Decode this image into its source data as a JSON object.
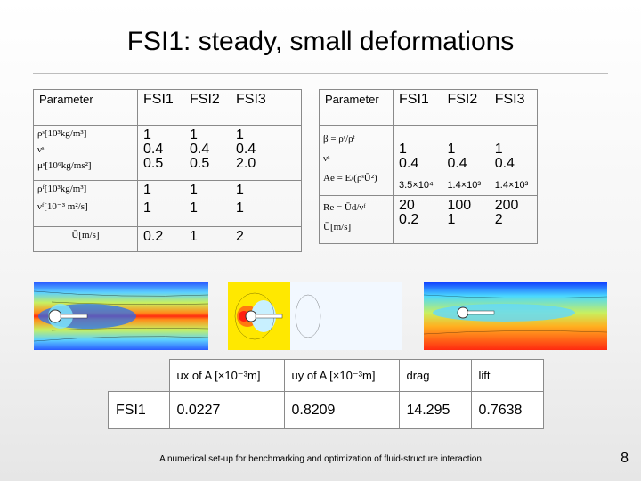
{
  "title": "FSI1: steady, small deformations",
  "table_left": {
    "headers": [
      "Parameter",
      "FSI1",
      "FSI2",
      "FSI3"
    ],
    "rows": [
      {
        "symbols": [
          "ρˢ[10³kg/m³]",
          "νˢ",
          "μˢ[10⁶kg/ms²]"
        ],
        "fsi1": [
          "1",
          "0.4",
          "0.5"
        ],
        "fsi2": [
          "1",
          "0.4",
          "0.5"
        ],
        "fsi3": [
          "1",
          "0.4",
          "2.0"
        ]
      },
      {
        "symbols": [
          "ρᶠ[10³kg/m³]",
          "νᶠ[10⁻³ m²/s]"
        ],
        "fsi1": [
          "1",
          "1"
        ],
        "fsi2": [
          "1",
          "1"
        ],
        "fsi3": [
          "1",
          "1"
        ]
      },
      {
        "symbols": [
          "Ū[m/s]"
        ],
        "fsi1": [
          "0.2"
        ],
        "fsi2": [
          "1"
        ],
        "fsi3": [
          "2"
        ]
      }
    ]
  },
  "table_right": {
    "headers": [
      "Parameter",
      "FSI1",
      "FSI2",
      "FSI3"
    ],
    "rows": [
      {
        "symbols": [
          "β = ρˢ/ρᶠ",
          "νˢ",
          "Ae = E/(ρˢŪ²)"
        ],
        "fsi1": [
          "1",
          "0.4",
          "3.5×10⁴"
        ],
        "fsi2": [
          "1",
          "0.4",
          "1.4×10³"
        ],
        "fsi3": [
          "1",
          "0.4",
          "1.4×10³"
        ]
      },
      {
        "symbols": [
          "Re = Ūd/νᶠ",
          "Ū[m/s]"
        ],
        "fsi1": [
          "20",
          "0.2"
        ],
        "fsi2": [
          "100",
          "1"
        ],
        "fsi3": [
          "200",
          "2"
        ]
      }
    ]
  },
  "results": {
    "headers": [
      "ux of A [×10⁻³m]",
      "uy of A [×10⁻³m]",
      "drag",
      "lift"
    ],
    "row_label": "FSI1",
    "values": [
      "0.0227",
      "0.8209",
      "14.295",
      "0.7638"
    ]
  },
  "footer": "A numerical set-up for benchmarking and optimization of fluid-structure interaction",
  "page_number": "8"
}
